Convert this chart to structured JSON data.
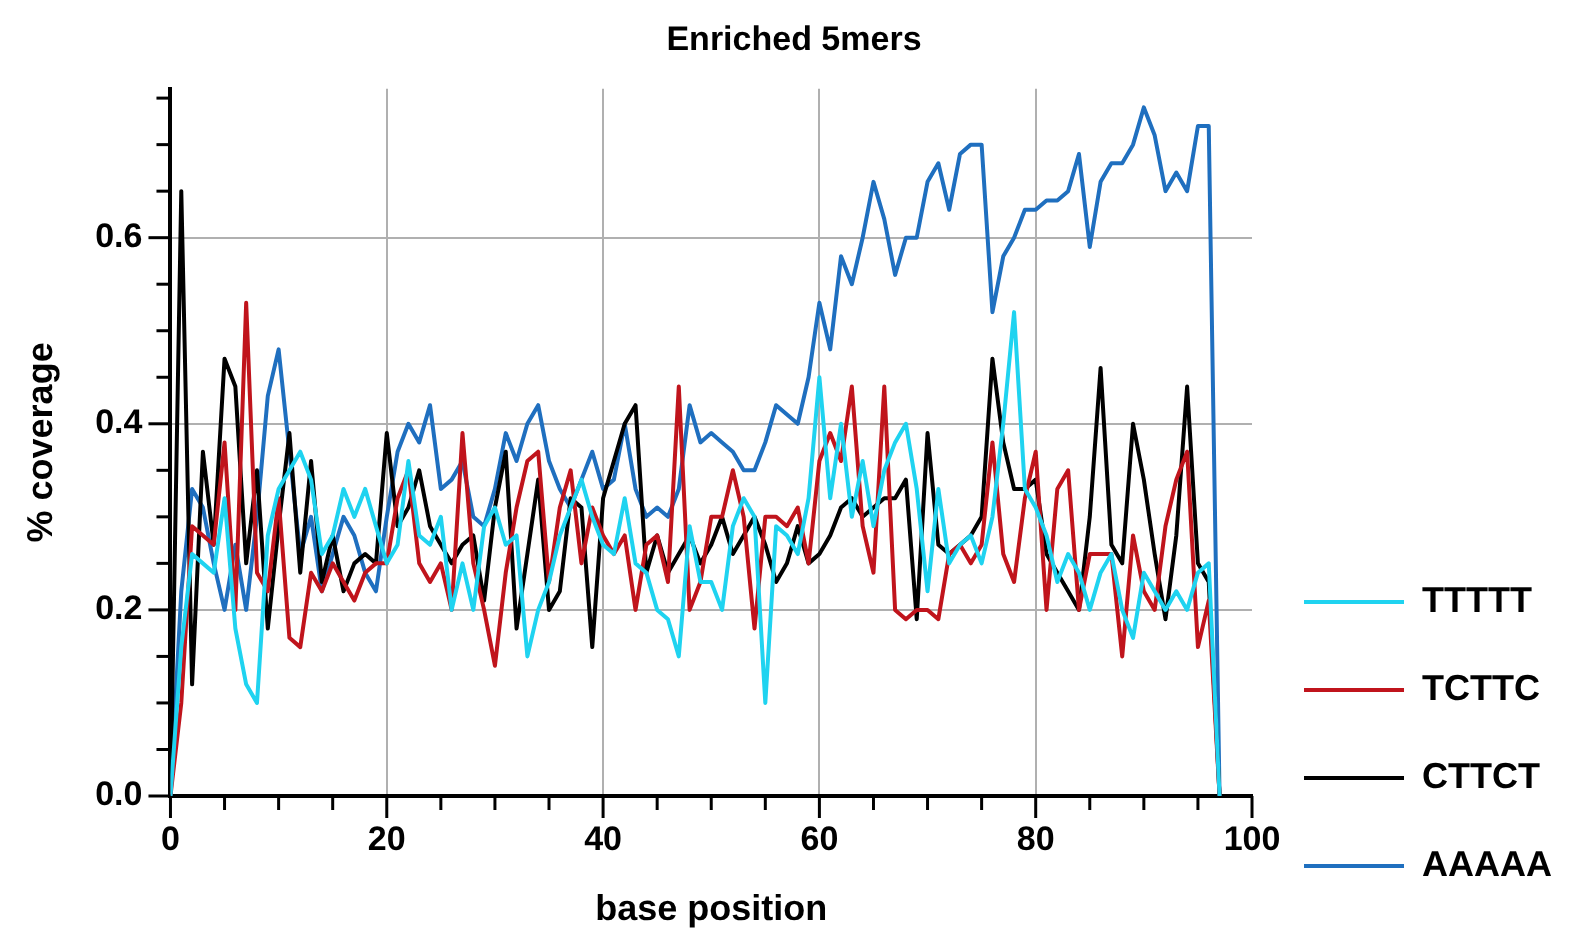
{
  "chart_data": {
    "type": "line",
    "title": "Enriched 5mers",
    "xlabel": "base position",
    "ylabel": "% coverage",
    "x": [
      0,
      1,
      2,
      3,
      4,
      5,
      6,
      7,
      8,
      9,
      10,
      11,
      12,
      13,
      14,
      15,
      16,
      17,
      18,
      19,
      20,
      21,
      22,
      23,
      24,
      25,
      26,
      27,
      28,
      29,
      30,
      31,
      32,
      33,
      34,
      35,
      36,
      37,
      38,
      39,
      40,
      41,
      42,
      43,
      44,
      45,
      46,
      47,
      48,
      49,
      50,
      51,
      52,
      53,
      54,
      55,
      56,
      57,
      58,
      59,
      60,
      61,
      62,
      63,
      64,
      65,
      66,
      67,
      68,
      69,
      70,
      71,
      72,
      73,
      74,
      75,
      76,
      77,
      78,
      79,
      80,
      81,
      82,
      83,
      84,
      85,
      86,
      87,
      88,
      89,
      90,
      91,
      92,
      93,
      94,
      95,
      96,
      97
    ],
    "series": [
      {
        "name": "TTTTT",
        "color": "#1fd3f0",
        "values": [
          0,
          0.16,
          0.26,
          0.25,
          0.24,
          0.32,
          0.18,
          0.12,
          0.1,
          0.28,
          0.33,
          0.35,
          0.37,
          0.34,
          0.26,
          0.28,
          0.33,
          0.3,
          0.33,
          0.29,
          0.25,
          0.27,
          0.36,
          0.28,
          0.27,
          0.3,
          0.2,
          0.25,
          0.2,
          0.29,
          0.31,
          0.27,
          0.28,
          0.15,
          0.2,
          0.23,
          0.28,
          0.31,
          0.34,
          0.3,
          0.27,
          0.26,
          0.32,
          0.25,
          0.24,
          0.2,
          0.19,
          0.15,
          0.29,
          0.23,
          0.23,
          0.2,
          0.29,
          0.32,
          0.3,
          0.1,
          0.29,
          0.28,
          0.26,
          0.32,
          0.45,
          0.32,
          0.4,
          0.3,
          0.36,
          0.29,
          0.35,
          0.38,
          0.4,
          0.33,
          0.22,
          0.33,
          0.25,
          0.27,
          0.28,
          0.25,
          0.3,
          0.4,
          0.52,
          0.33,
          0.31,
          0.28,
          0.23,
          0.26,
          0.24,
          0.2,
          0.24,
          0.26,
          0.2,
          0.17,
          0.24,
          0.22,
          0.2,
          0.22,
          0.2,
          0.24,
          0.25,
          0
        ]
      },
      {
        "name": "TCTTC",
        "color": "#c0141c",
        "values": [
          0,
          0.1,
          0.29,
          0.28,
          0.27,
          0.38,
          0.2,
          0.53,
          0.24,
          0.22,
          0.32,
          0.17,
          0.16,
          0.24,
          0.22,
          0.25,
          0.23,
          0.21,
          0.24,
          0.25,
          0.25,
          0.32,
          0.35,
          0.25,
          0.23,
          0.25,
          0.2,
          0.39,
          0.25,
          0.2,
          0.14,
          0.24,
          0.31,
          0.36,
          0.37,
          0.23,
          0.31,
          0.35,
          0.25,
          0.31,
          0.28,
          0.26,
          0.28,
          0.2,
          0.27,
          0.28,
          0.23,
          0.44,
          0.2,
          0.23,
          0.3,
          0.3,
          0.35,
          0.3,
          0.18,
          0.3,
          0.3,
          0.29,
          0.31,
          0.25,
          0.36,
          0.39,
          0.36,
          0.44,
          0.29,
          0.24,
          0.44,
          0.2,
          0.19,
          0.2,
          0.2,
          0.19,
          0.26,
          0.27,
          0.25,
          0.27,
          0.38,
          0.26,
          0.23,
          0.32,
          0.37,
          0.2,
          0.33,
          0.35,
          0.2,
          0.26,
          0.26,
          0.26,
          0.15,
          0.28,
          0.22,
          0.2,
          0.29,
          0.34,
          0.37,
          0.16,
          0.21,
          0
        ]
      },
      {
        "name": "CTTCT",
        "color": "#000000",
        "values": [
          0,
          0.65,
          0.12,
          0.37,
          0.27,
          0.47,
          0.44,
          0.25,
          0.35,
          0.18,
          0.29,
          0.39,
          0.24,
          0.36,
          0.23,
          0.28,
          0.22,
          0.25,
          0.26,
          0.25,
          0.39,
          0.29,
          0.31,
          0.35,
          0.29,
          0.27,
          0.25,
          0.27,
          0.28,
          0.21,
          0.31,
          0.37,
          0.18,
          0.26,
          0.34,
          0.2,
          0.22,
          0.32,
          0.31,
          0.16,
          0.32,
          0.36,
          0.4,
          0.42,
          0.24,
          0.28,
          0.24,
          0.26,
          0.28,
          0.25,
          0.27,
          0.3,
          0.26,
          0.28,
          0.3,
          0.27,
          0.23,
          0.25,
          0.29,
          0.25,
          0.26,
          0.28,
          0.31,
          0.32,
          0.3,
          0.31,
          0.32,
          0.32,
          0.34,
          0.19,
          0.39,
          0.27,
          0.26,
          0.27,
          0.28,
          0.3,
          0.47,
          0.38,
          0.33,
          0.33,
          0.34,
          0.26,
          0.24,
          0.22,
          0.2,
          0.3,
          0.46,
          0.27,
          0.25,
          0.4,
          0.34,
          0.26,
          0.19,
          0.28,
          0.44,
          0.25,
          0.23,
          0
        ]
      },
      {
        "name": "AAAAA",
        "color": "#1f6fbf",
        "values": [
          0,
          0.22,
          0.33,
          0.31,
          0.25,
          0.2,
          0.27,
          0.2,
          0.3,
          0.43,
          0.48,
          0.37,
          0.26,
          0.3,
          0.22,
          0.26,
          0.3,
          0.28,
          0.24,
          0.22,
          0.3,
          0.37,
          0.4,
          0.38,
          0.42,
          0.33,
          0.34,
          0.36,
          0.3,
          0.29,
          0.33,
          0.39,
          0.36,
          0.4,
          0.42,
          0.36,
          0.33,
          0.31,
          0.34,
          0.37,
          0.33,
          0.34,
          0.4,
          0.33,
          0.3,
          0.31,
          0.3,
          0.33,
          0.42,
          0.38,
          0.39,
          0.38,
          0.37,
          0.35,
          0.35,
          0.38,
          0.42,
          0.41,
          0.4,
          0.45,
          0.53,
          0.48,
          0.58,
          0.55,
          0.6,
          0.66,
          0.62,
          0.56,
          0.6,
          0.6,
          0.66,
          0.68,
          0.63,
          0.69,
          0.7,
          0.7,
          0.52,
          0.58,
          0.6,
          0.63,
          0.63,
          0.64,
          0.64,
          0.65,
          0.69,
          0.59,
          0.66,
          0.68,
          0.68,
          0.7,
          0.74,
          0.71,
          0.65,
          0.67,
          0.65,
          0.72,
          0.72,
          0
        ]
      }
    ],
    "xlim": [
      0,
      100
    ],
    "xticks": [
      0,
      {
        "value": 5,
        "label": null
      },
      {
        "value": 10,
        "label": null
      },
      {
        "value": 15,
        "label": null
      },
      20,
      {
        "value": 25,
        "label": null
      },
      {
        "value": 30,
        "label": null
      },
      {
        "value": 35,
        "label": null
      },
      40,
      {
        "value": 45,
        "label": null
      },
      {
        "value": 50,
        "label": null
      },
      {
        "value": 55,
        "label": null
      },
      60,
      {
        "value": 65,
        "label": null
      },
      {
        "value": 70,
        "label": null
      },
      {
        "value": 75,
        "label": null
      },
      80,
      {
        "value": 85,
        "label": null
      },
      {
        "value": 90,
        "label": null
      },
      {
        "value": 95,
        "label": null
      },
      100
    ],
    "ylim": [
      0,
      0.76
    ],
    "yticks": [
      "0.0",
      {
        "value": 0.05,
        "label": null
      },
      {
        "value": 0.1,
        "label": null
      },
      {
        "value": 0.15,
        "label": null
      },
      {
        "value": 0.2,
        "label": "0.2"
      },
      {
        "value": 0.25,
        "label": null
      },
      {
        "value": 0.3,
        "label": null
      },
      {
        "value": 0.35,
        "label": null
      },
      {
        "value": 0.4,
        "label": "0.4"
      },
      {
        "value": 0.45,
        "label": null
      },
      {
        "value": 0.5,
        "label": null
      },
      {
        "value": 0.55,
        "label": null
      },
      {
        "value": 0.6,
        "label": "0.6"
      },
      {
        "value": 0.65,
        "label": null
      },
      {
        "value": 0.7,
        "label": null
      },
      {
        "value": 0.75,
        "label": null
      }
    ],
    "grid": true,
    "legend": "right",
    "marker": "none",
    "line_style": "solid"
  }
}
